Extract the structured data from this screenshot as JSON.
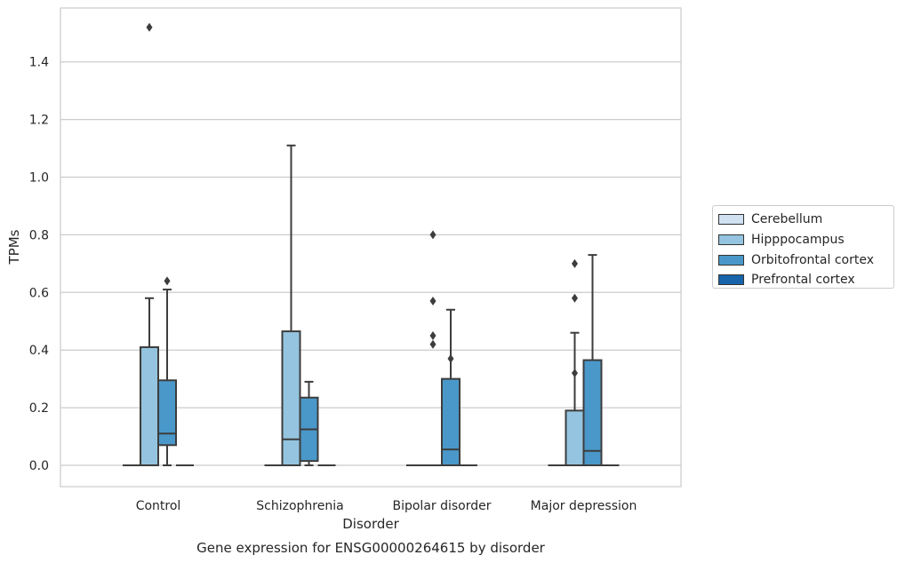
{
  "chart_data": {
    "type": "box",
    "title": "",
    "caption": "Gene expression for ENSG00000264615 by disorder",
    "xlabel": "Disorder",
    "ylabel": "TPMs",
    "ylim": [
      -0.075,
      1.6
    ],
    "yticks": [
      0.0,
      0.2,
      0.4,
      0.6,
      0.8,
      1.0,
      1.2,
      1.4
    ],
    "ytick_labels": [
      "0.0",
      "0.2",
      "0.4",
      "0.6",
      "0.8",
      "1.0",
      "1.2",
      "1.4"
    ],
    "grid": "horizontal",
    "legend_position": "right",
    "categories": [
      "Control",
      "Schizophrenia",
      "Bipolar disorder",
      "Major depression"
    ],
    "series": [
      {
        "name": "Cerebellum",
        "color": "#d0e1f2",
        "boxes": [
          {
            "min": 0,
            "q1": 0,
            "median": 0,
            "q3": 0,
            "max": 0,
            "outliers": []
          },
          {
            "min": 0,
            "q1": 0,
            "median": 0,
            "q3": 0,
            "max": 0,
            "outliers": []
          },
          {
            "min": 0,
            "q1": 0,
            "median": 0,
            "q3": 0,
            "max": 0,
            "outliers": []
          },
          {
            "min": 0,
            "q1": 0,
            "median": 0,
            "q3": 0,
            "max": 0,
            "outliers": []
          }
        ]
      },
      {
        "name": "Hipppocampus",
        "color": "#94c4df",
        "boxes": [
          {
            "min": 0,
            "q1": 0,
            "median": 0,
            "q3": 0.41,
            "max": 0.58,
            "outliers": [
              1.52
            ]
          },
          {
            "min": 0,
            "q1": 0,
            "median": 0.09,
            "q3": 0.465,
            "max": 1.11,
            "outliers": []
          },
          {
            "min": 0,
            "q1": 0,
            "median": 0,
            "q3": 0,
            "max": 0,
            "outliers": [
              0.42,
              0.57,
              0.45,
              0.8
            ]
          },
          {
            "min": 0,
            "q1": 0,
            "median": 0,
            "q3": 0.19,
            "max": 0.46,
            "outliers": [
              0.32,
              0.58,
              0.7
            ]
          }
        ]
      },
      {
        "name": "Orbitofrontal cortex",
        "color": "#4a98c9",
        "boxes": [
          {
            "min": 0,
            "q1": 0.07,
            "median": 0.11,
            "q3": 0.295,
            "max": 0.61,
            "outliers": [
              0.64
            ]
          },
          {
            "min": 0,
            "q1": 0.015,
            "median": 0.125,
            "q3": 0.235,
            "max": 0.29,
            "outliers": []
          },
          {
            "min": 0,
            "q1": 0,
            "median": 0.055,
            "q3": 0.3,
            "max": 0.54,
            "outliers": [
              0.37
            ]
          },
          {
            "min": 0,
            "q1": 0,
            "median": 0.05,
            "q3": 0.365,
            "max": 0.73,
            "outliers": []
          }
        ]
      },
      {
        "name": "Prefrontal cortex",
        "color": "#1764ab",
        "boxes": [
          {
            "min": 0,
            "q1": 0,
            "median": 0,
            "q3": 0,
            "max": 0,
            "outliers": []
          },
          {
            "min": 0,
            "q1": 0,
            "median": 0,
            "q3": 0,
            "max": 0,
            "outliers": []
          },
          {
            "min": 0,
            "q1": 0,
            "median": 0,
            "q3": 0,
            "max": 0,
            "outliers": []
          },
          {
            "min": 0,
            "q1": 0,
            "median": 0,
            "q3": 0,
            "max": 0,
            "outliers": []
          }
        ]
      }
    ]
  }
}
